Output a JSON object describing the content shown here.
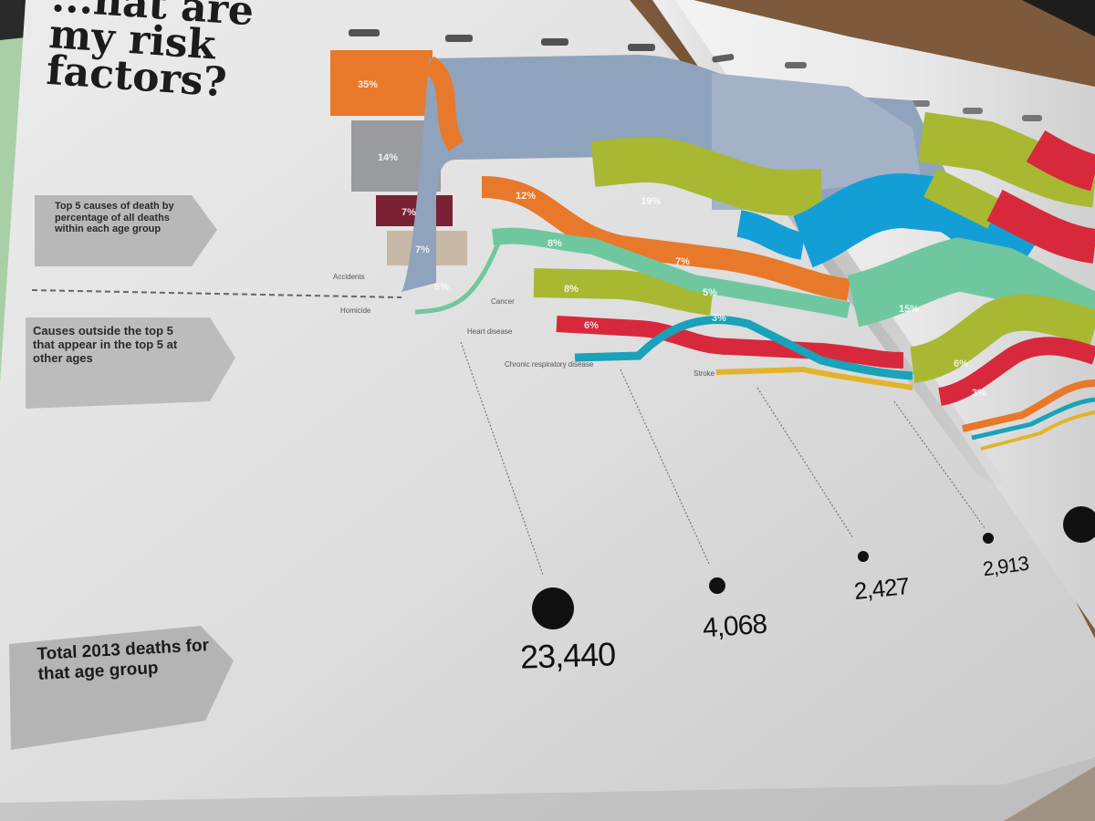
{
  "title": "...hat are my risk factors?",
  "labels": {
    "top5": "Top 5 causes of death by percentage of all deaths within each age group",
    "outside": "Causes outside the top 5 that appear in the top 5 at other ages",
    "total": "Total 2013 deaths for that age group"
  },
  "row_labels": {
    "accidents": "Accidents",
    "homicide": "Homicide"
  },
  "flow_labels": {
    "cancer": "Cancer",
    "heart_disease": "Heart disease",
    "chronic_respiratory": "Chronic respiratory disease",
    "stroke": "Stroke"
  },
  "percentages": {
    "p1": "35%",
    "p2": "14%",
    "p3": "7%",
    "p4": "7%",
    "p5": "5%",
    "p6": "12%",
    "p7": "8%",
    "p8": "8%",
    "p9": "6%",
    "p10": "3%",
    "p11": "19%",
    "p12": "7%",
    "p13": "5%",
    "p14": "15%",
    "p15": "6%",
    "p16": "3%"
  },
  "totals": [
    "23,440",
    "4,068",
    "2,427",
    "2,913"
  ],
  "colors": {
    "orange": "#e8782a",
    "gray": "#9a9b9e",
    "maroon": "#7a2035",
    "tan": "#c8b8a8",
    "slate": "#8fa3bd",
    "olive": "#a8b832",
    "teal": "#6fc7a0",
    "red": "#d8283c",
    "blue": "#139fd6",
    "cyan": "#19a2b8",
    "yellow": "#e2b42a"
  }
}
